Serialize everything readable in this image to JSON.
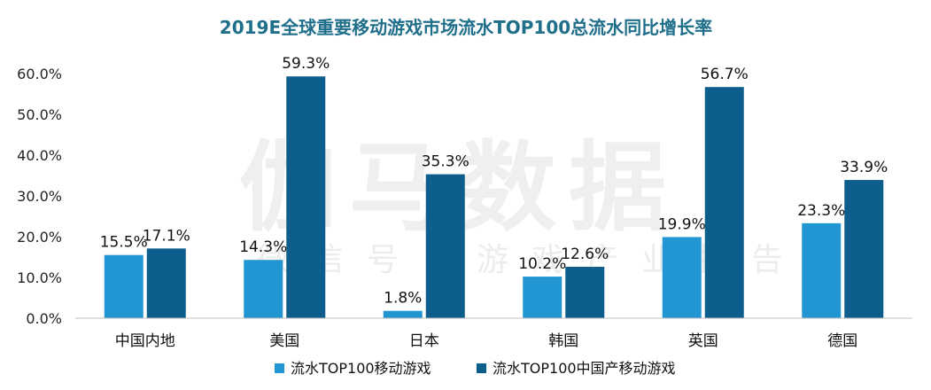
{
  "chart_data": {
    "type": "bar",
    "title": "2019E全球重要移动游戏市场流水TOP100总流水同比增长率",
    "categories": [
      "中国内地",
      "美国",
      "日本",
      "韩国",
      "英国",
      "德国"
    ],
    "series": [
      {
        "name": "流水TOP100移动游戏",
        "color": "#2196d3",
        "values": [
          15.5,
          14.3,
          1.8,
          10.2,
          19.9,
          23.3
        ],
        "labels": [
          "15.5%",
          "14.3%",
          "1.8%",
          "10.2%",
          "19.9%",
          "23.3%"
        ]
      },
      {
        "name": "流水TOP100中国产移动游戏",
        "color": "#0d5e8c",
        "values": [
          17.1,
          59.3,
          35.3,
          12.6,
          56.7,
          33.9
        ],
        "labels": [
          "17.1%",
          "59.3%",
          "35.3%",
          "12.6%",
          "56.7%",
          "33.9%"
        ]
      }
    ],
    "ylim": [
      0,
      60
    ],
    "yticks": [
      0,
      10,
      20,
      30,
      40,
      50,
      60
    ],
    "ytick_labels": [
      "0.0%",
      "10.0%",
      "20.0%",
      "30.0%",
      "40.0%",
      "50.0%",
      "60.0%"
    ],
    "grid": false,
    "legend": "bottom",
    "watermark": {
      "main": "伽马数据",
      "sub": "微信号：游戏产业报告"
    }
  }
}
